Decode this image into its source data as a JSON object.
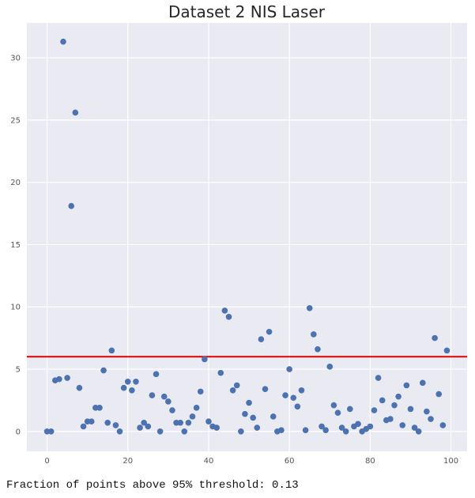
{
  "chart_data": {
    "type": "scatter",
    "title": "Dataset 2 NIS Laser",
    "xlabel": "",
    "ylabel": "",
    "xlim": [
      -5,
      104
    ],
    "ylim": [
      -1.6,
      32.8
    ],
    "x_ticks": [
      0,
      20,
      40,
      60,
      80,
      100
    ],
    "y_ticks": [
      0,
      5,
      10,
      15,
      20,
      25,
      30
    ],
    "grid": true,
    "background_color": "#EAEAF2",
    "grid_color": "#ffffff",
    "marker_color": "#4C72B0",
    "threshold": {
      "value": 6.0,
      "color": "#DD0000"
    },
    "points": [
      [
        0,
        0.0
      ],
      [
        1,
        0.0
      ],
      [
        2,
        4.1
      ],
      [
        3,
        4.2
      ],
      [
        4,
        31.3
      ],
      [
        5,
        4.3
      ],
      [
        6,
        18.1
      ],
      [
        7,
        25.6
      ],
      [
        8,
        3.5
      ],
      [
        9,
        0.4
      ],
      [
        10,
        0.8
      ],
      [
        11,
        0.8
      ],
      [
        12,
        1.9
      ],
      [
        13,
        1.9
      ],
      [
        14,
        4.9
      ],
      [
        15,
        0.7
      ],
      [
        16,
        6.5
      ],
      [
        17,
        0.5
      ],
      [
        18,
        0.0
      ],
      [
        19,
        3.5
      ],
      [
        20,
        4.0
      ],
      [
        21,
        3.3
      ],
      [
        22,
        4.0
      ],
      [
        23,
        0.3
      ],
      [
        24,
        0.7
      ],
      [
        25,
        0.4
      ],
      [
        26,
        2.9
      ],
      [
        27,
        4.6
      ],
      [
        28,
        0.0
      ],
      [
        29,
        2.8
      ],
      [
        30,
        2.4
      ],
      [
        31,
        1.7
      ],
      [
        32,
        0.7
      ],
      [
        33,
        0.7
      ],
      [
        34,
        0.0
      ],
      [
        35,
        0.7
      ],
      [
        36,
        1.2
      ],
      [
        37,
        1.9
      ],
      [
        38,
        3.2
      ],
      [
        39,
        5.8
      ],
      [
        40,
        0.8
      ],
      [
        41,
        0.4
      ],
      [
        42,
        0.3
      ],
      [
        43,
        4.7
      ],
      [
        44,
        9.7
      ],
      [
        45,
        9.2
      ],
      [
        46,
        3.3
      ],
      [
        47,
        3.7
      ],
      [
        48,
        0.0
      ],
      [
        49,
        1.4
      ],
      [
        50,
        2.3
      ],
      [
        51,
        1.1
      ],
      [
        52,
        0.3
      ],
      [
        53,
        7.4
      ],
      [
        54,
        3.4
      ],
      [
        55,
        8.0
      ],
      [
        56,
        1.2
      ],
      [
        57,
        0.0
      ],
      [
        58,
        0.1
      ],
      [
        59,
        2.9
      ],
      [
        60,
        5.0
      ],
      [
        61,
        2.7
      ],
      [
        62,
        2.0
      ],
      [
        63,
        3.3
      ],
      [
        64,
        0.1
      ],
      [
        65,
        9.9
      ],
      [
        66,
        7.8
      ],
      [
        67,
        6.6
      ],
      [
        68,
        0.4
      ],
      [
        69,
        0.1
      ],
      [
        70,
        5.2
      ],
      [
        71,
        2.1
      ],
      [
        72,
        1.5
      ],
      [
        73,
        0.3
      ],
      [
        74,
        0.0
      ],
      [
        75,
        1.8
      ],
      [
        76,
        0.4
      ],
      [
        77,
        0.6
      ],
      [
        78,
        0.0
      ],
      [
        79,
        0.2
      ],
      [
        80,
        0.4
      ],
      [
        81,
        1.7
      ],
      [
        82,
        4.3
      ],
      [
        83,
        2.5
      ],
      [
        84,
        0.9
      ],
      [
        85,
        1.0
      ],
      [
        86,
        2.1
      ],
      [
        87,
        2.8
      ],
      [
        88,
        0.5
      ],
      [
        89,
        3.7
      ],
      [
        90,
        1.8
      ],
      [
        91,
        0.3
      ],
      [
        92,
        0.0
      ],
      [
        93,
        3.9
      ],
      [
        94,
        1.6
      ],
      [
        95,
        1.0
      ],
      [
        96,
        7.5
      ],
      [
        97,
        3.0
      ],
      [
        98,
        0.5
      ],
      [
        99,
        6.5
      ]
    ]
  },
  "caption": "Fraction of points above 95% threshold: 0.13"
}
